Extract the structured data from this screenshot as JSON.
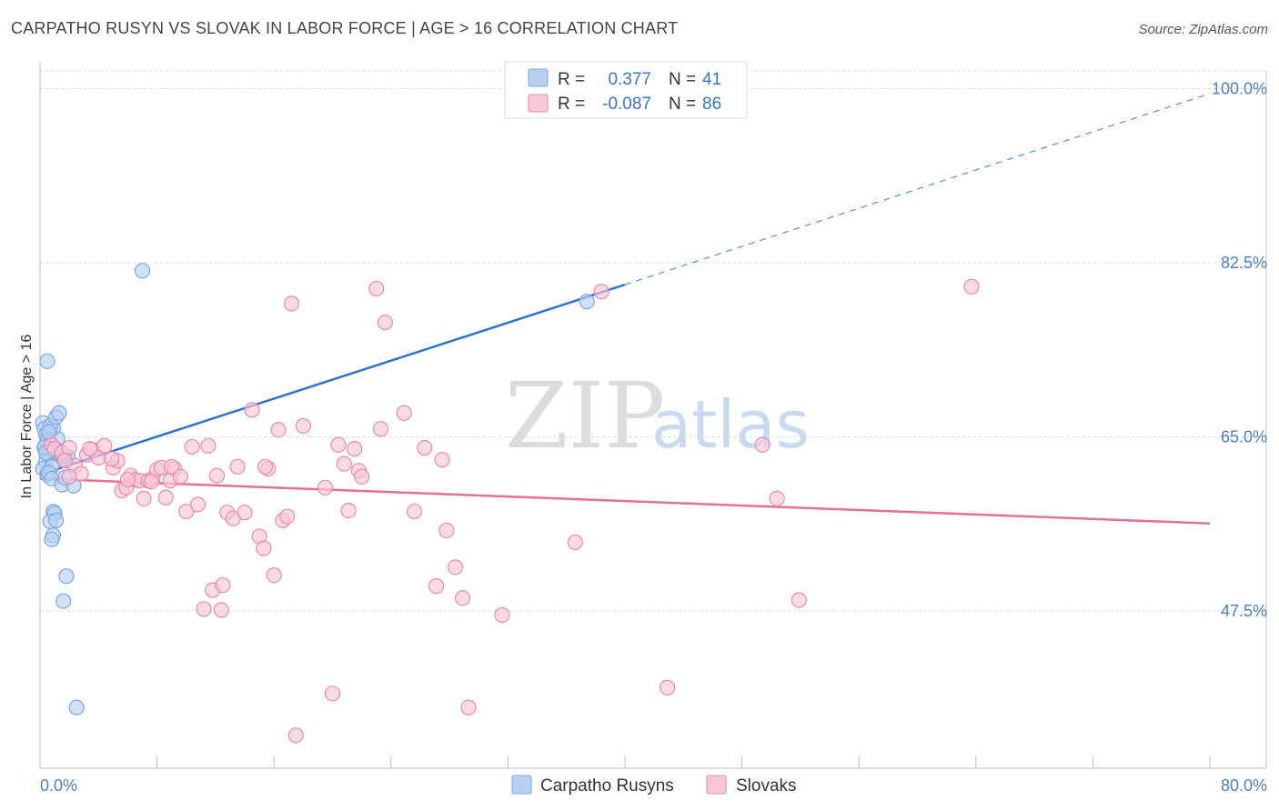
{
  "title": "CARPATHO RUSYN VS SLOVAK IN LABOR FORCE | AGE > 16 CORRELATION CHART",
  "source": "Source: ZipAtlas.com",
  "watermark": {
    "zip": "ZIP",
    "atlas": "atlas"
  },
  "legend": {
    "r_label": "R =",
    "n_label": "N =",
    "rows": [
      {
        "r": "0.377",
        "n": "41"
      },
      {
        "r": "-0.087",
        "n": "86"
      }
    ]
  },
  "chart_data": {
    "type": "scatter",
    "title": "CARPATHO RUSYN VS SLOVAK IN LABOR FORCE | AGE > 16 CORRELATION CHART",
    "xlabel": "",
    "ylabel": "In Labor Force | Age > 16",
    "xlim": [
      0,
      80
    ],
    "ylim": [
      30,
      102
    ],
    "x_tick_labels": [
      "0.0%",
      "80.0%"
    ],
    "y_ticks": [
      47.5,
      65.0,
      82.5,
      100.0
    ],
    "y_tick_labels": [
      "47.5%",
      "65.0%",
      "82.5%",
      "100.0%"
    ],
    "grid": true,
    "series": [
      {
        "name": "Carpatho Rusyns",
        "color": "#7aa7e0",
        "fill": "#b7d0f2",
        "r": 0.377,
        "n": 41,
        "trend": {
          "x0": 0,
          "y0": 61.2,
          "x1": 40,
          "y1": 80.3,
          "x_dash_end": 80,
          "y_dash_end": 99.5
        },
        "points": [
          [
            0.2,
            66.4
          ],
          [
            0.3,
            65.8
          ],
          [
            0.4,
            65.2
          ],
          [
            0.5,
            64.6
          ],
          [
            0.3,
            63.9
          ],
          [
            0.6,
            63.2
          ],
          [
            0.4,
            62.5
          ],
          [
            0.2,
            61.8
          ],
          [
            0.5,
            61.2
          ],
          [
            0.8,
            62.0
          ],
          [
            1.0,
            63.5
          ],
          [
            1.2,
            64.8
          ],
          [
            1.4,
            63.1
          ],
          [
            0.9,
            65.9
          ],
          [
            0.7,
            66.1
          ],
          [
            1.1,
            67.0
          ],
          [
            1.3,
            67.4
          ],
          [
            0.5,
            72.6
          ],
          [
            0.6,
            61.4
          ],
          [
            0.8,
            60.8
          ],
          [
            1.5,
            60.2
          ],
          [
            2.3,
            60.1
          ],
          [
            1.7,
            60.9
          ],
          [
            1.9,
            63.0
          ],
          [
            1.6,
            62.8
          ],
          [
            0.9,
            57.5
          ],
          [
            1.0,
            57.3
          ],
          [
            0.7,
            56.5
          ],
          [
            1.1,
            56.6
          ],
          [
            0.9,
            55.1
          ],
          [
            0.8,
            54.7
          ],
          [
            1.8,
            51.0
          ],
          [
            1.6,
            48.5
          ],
          [
            2.5,
            37.8
          ],
          [
            7.0,
            81.7
          ],
          [
            37.4,
            78.6
          ],
          [
            0.3,
            64.0
          ],
          [
            0.4,
            63.4
          ],
          [
            1.3,
            63.6
          ],
          [
            1.6,
            63.1
          ],
          [
            0.6,
            65.5
          ]
        ]
      },
      {
        "name": "Slovaks",
        "color": "#e88aab",
        "fill": "#f7c7d7",
        "r": -0.087,
        "n": 86,
        "trend": {
          "x0": 0,
          "y0": 60.8,
          "x1": 80,
          "y1": 56.3
        },
        "points": [
          [
            0.8,
            64.2
          ],
          [
            1.0,
            63.8
          ],
          [
            1.5,
            63.4
          ],
          [
            2.0,
            63.9
          ],
          [
            2.4,
            62.1
          ],
          [
            2.8,
            61.3
          ],
          [
            3.2,
            63.2
          ],
          [
            3.6,
            63.7
          ],
          [
            4.0,
            62.9
          ],
          [
            4.4,
            64.1
          ],
          [
            5.0,
            61.9
          ],
          [
            5.3,
            62.6
          ],
          [
            5.6,
            59.6
          ],
          [
            5.9,
            59.9
          ],
          [
            6.2,
            61.1
          ],
          [
            6.5,
            60.7
          ],
          [
            6.8,
            60.6
          ],
          [
            7.1,
            58.8
          ],
          [
            7.4,
            60.6
          ],
          [
            7.7,
            60.8
          ],
          [
            8.0,
            61.7
          ],
          [
            8.3,
            61.9
          ],
          [
            8.6,
            58.9
          ],
          [
            8.9,
            60.6
          ],
          [
            9.2,
            61.8
          ],
          [
            9.6,
            61.0
          ],
          [
            10.0,
            57.5
          ],
          [
            10.4,
            64.0
          ],
          [
            10.8,
            58.2
          ],
          [
            11.2,
            47.7
          ],
          [
            11.5,
            64.1
          ],
          [
            11.8,
            49.6
          ],
          [
            12.1,
            61.1
          ],
          [
            12.5,
            50.1
          ],
          [
            12.8,
            57.4
          ],
          [
            13.2,
            56.8
          ],
          [
            13.5,
            62.0
          ],
          [
            14.0,
            57.4
          ],
          [
            14.5,
            67.7
          ],
          [
            15.0,
            55.0
          ],
          [
            15.3,
            53.8
          ],
          [
            15.6,
            61.8
          ],
          [
            16.0,
            51.1
          ],
          [
            16.3,
            65.7
          ],
          [
            16.6,
            56.6
          ],
          [
            16.9,
            57.0
          ],
          [
            17.2,
            78.4
          ],
          [
            17.5,
            35.0
          ],
          [
            18.0,
            66.1
          ],
          [
            19.5,
            59.9
          ],
          [
            20.0,
            39.2
          ],
          [
            20.4,
            64.2
          ],
          [
            20.8,
            62.3
          ],
          [
            21.1,
            57.6
          ],
          [
            21.5,
            63.8
          ],
          [
            21.8,
            61.6
          ],
          [
            22.0,
            61.0
          ],
          [
            23.0,
            79.9
          ],
          [
            23.3,
            65.8
          ],
          [
            23.6,
            76.5
          ],
          [
            24.9,
            67.4
          ],
          [
            25.6,
            57.5
          ],
          [
            26.3,
            63.9
          ],
          [
            27.1,
            50.0
          ],
          [
            27.5,
            62.7
          ],
          [
            27.8,
            55.6
          ],
          [
            28.4,
            51.9
          ],
          [
            28.9,
            48.8
          ],
          [
            29.3,
            37.8
          ],
          [
            31.6,
            47.1
          ],
          [
            36.6,
            54.4
          ],
          [
            38.4,
            79.6
          ],
          [
            42.9,
            39.8
          ],
          [
            49.4,
            64.2
          ],
          [
            50.4,
            58.8
          ],
          [
            51.9,
            48.6
          ],
          [
            63.7,
            80.1
          ],
          [
            4.9,
            62.8
          ],
          [
            7.6,
            60.5
          ],
          [
            9.0,
            62.0
          ],
          [
            12.4,
            47.6
          ],
          [
            15.4,
            62.0
          ],
          [
            1.7,
            62.6
          ],
          [
            3.4,
            63.8
          ],
          [
            6.0,
            60.7
          ],
          [
            2.0,
            61.0
          ]
        ]
      }
    ]
  }
}
